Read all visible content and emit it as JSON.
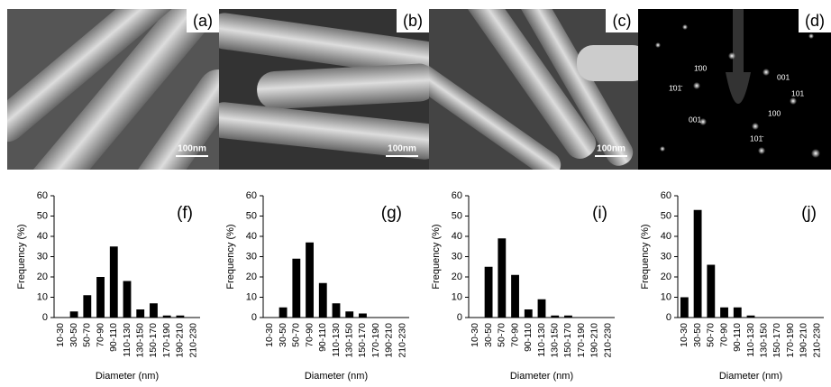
{
  "panels": [
    {
      "label": "(a)",
      "scale": "100nm"
    },
    {
      "label": "(b)",
      "scale": "100nm"
    },
    {
      "label": "(c)",
      "scale": "100nm"
    },
    {
      "label": "(d)",
      "spots": [
        "1̄00",
        "001",
        "1̄01̄",
        "101",
        "001",
        "100",
        "101̄"
      ]
    }
  ],
  "chart_data": [
    {
      "type": "bar",
      "panel_label": "(f)",
      "x_label": "Diameter (nm)",
      "y_label": "Frequency (%)",
      "color": "#000000",
      "categories": [
        "10-30",
        "30-50",
        "50-70",
        "70-90",
        "90-110",
        "110-130",
        "130-150",
        "150-170",
        "170-190",
        "190-210",
        "210-230"
      ],
      "values": [
        0,
        3,
        11,
        20,
        35,
        18,
        4,
        7,
        1,
        1,
        0
      ],
      "ylim": [
        0,
        60
      ],
      "yticks": [
        0,
        10,
        20,
        30,
        40,
        50,
        60
      ]
    },
    {
      "type": "bar",
      "panel_label": "(g)",
      "x_label": "Diameter (nm)",
      "y_label": "Frequency (%)",
      "color": "#000000",
      "categories": [
        "10-30",
        "30-50",
        "50-70",
        "70-90",
        "90-110",
        "110-130",
        "130-150",
        "150-170",
        "170-190",
        "190-210",
        "210-230"
      ],
      "values": [
        0,
        5,
        29,
        37,
        17,
        7,
        3,
        2,
        0,
        0,
        0
      ],
      "ylim": [
        0,
        60
      ],
      "yticks": [
        0,
        10,
        20,
        30,
        40,
        50,
        60
      ]
    },
    {
      "type": "bar",
      "panel_label": "(i)",
      "x_label": "Diameter (nm)",
      "y_label": "Frequency (%)",
      "color": "#000000",
      "categories": [
        "10-30",
        "30-50",
        "50-70",
        "70-90",
        "90-110",
        "110-130",
        "130-150",
        "150-170",
        "170-190",
        "190-210",
        "210-230"
      ],
      "values": [
        0,
        25,
        39,
        21,
        4,
        9,
        1,
        1,
        0,
        0,
        0
      ],
      "ylim": [
        0,
        60
      ],
      "yticks": [
        0,
        10,
        20,
        30,
        40,
        50,
        60
      ]
    },
    {
      "type": "bar",
      "panel_label": "(j)",
      "x_label": "Diameter (nm)",
      "y_label": "Frequency (%)",
      "color": "#000000",
      "categories": [
        "10-30",
        "30-50",
        "50-70",
        "70-90",
        "90-110",
        "110-130",
        "130-150",
        "150-170",
        "170-190",
        "190-210",
        "210-230"
      ],
      "values": [
        10,
        53,
        26,
        5,
        5,
        1,
        0,
        0,
        0,
        0,
        0
      ],
      "ylim": [
        0,
        60
      ],
      "yticks": [
        0,
        10,
        20,
        30,
        40,
        50,
        60
      ]
    }
  ]
}
